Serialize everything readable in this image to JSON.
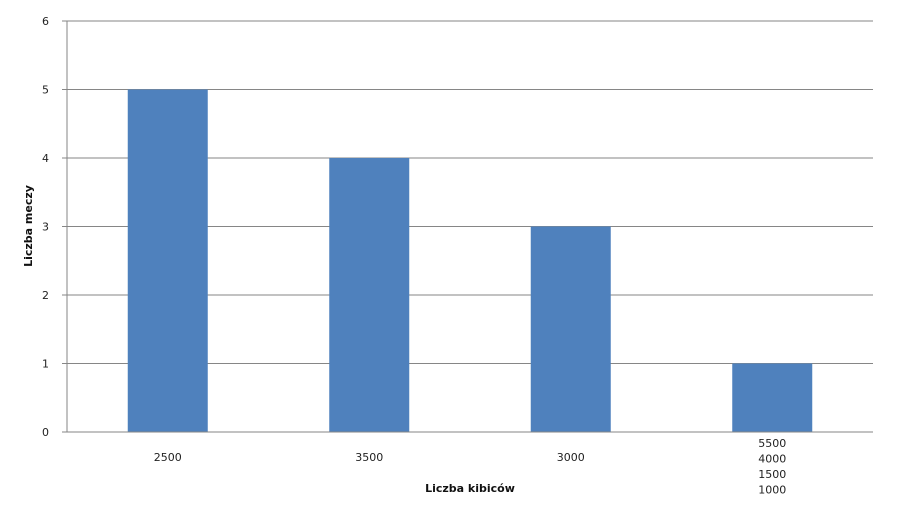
{
  "chart_data": {
    "type": "bar",
    "title": "",
    "xlabel": "Liczba kibiców",
    "ylabel": "Liczba meczy",
    "categories": [
      "2500",
      "3500",
      "3000",
      "5500\n4000\n1500\n1000"
    ],
    "values": [
      5,
      4,
      3,
      1
    ],
    "ylim": [
      0,
      6
    ],
    "yticks": [
      0,
      1,
      2,
      3,
      4,
      5,
      6
    ],
    "grid": true,
    "legend": "none",
    "colors": {
      "bar": "#4f81bd",
      "grid": "#868686"
    }
  }
}
